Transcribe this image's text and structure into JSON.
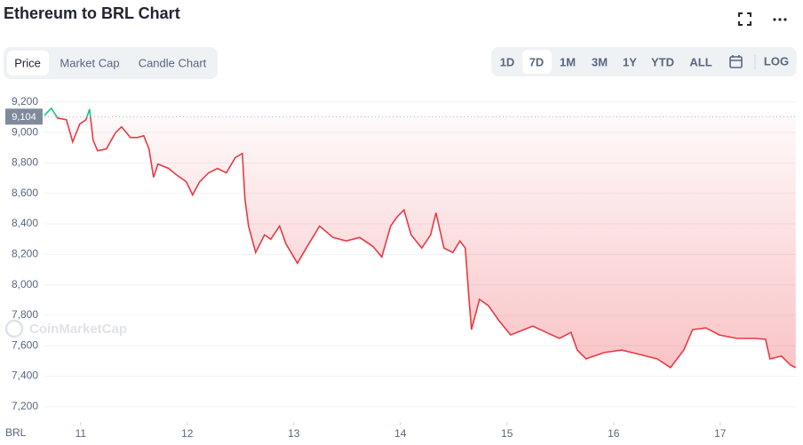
{
  "toolbar": {
    "tabs": [
      "Price",
      "Market Cap",
      "Candle Chart"
    ],
    "ranges": [
      "1D",
      "7D",
      "1M",
      "3M",
      "1Y",
      "YTD",
      "ALL"
    ],
    "log": "LOG",
    "watermark": "CoinMarketCap"
  },
  "chart_data": {
    "type": "line",
    "title": "Ethereum to BRL Chart",
    "y_label": "BRL",
    "x": [
      10.66,
      10.725,
      10.783,
      10.867,
      10.925,
      10.992,
      11.05,
      11.083,
      11.117,
      11.158,
      11.242,
      11.325,
      11.383,
      11.467,
      11.533,
      11.592,
      11.642,
      11.683,
      11.725,
      11.825,
      11.908,
      11.992,
      12.05,
      12.117,
      12.2,
      12.283,
      12.367,
      12.45,
      12.517,
      12.542,
      12.575,
      12.642,
      12.725,
      12.783,
      12.867,
      12.925,
      13.033,
      13.117,
      13.242,
      13.367,
      13.492,
      13.617,
      13.742,
      13.825,
      13.908,
      13.967,
      14.033,
      14.1,
      14.2,
      14.283,
      14.333,
      14.408,
      14.492,
      14.558,
      14.608,
      14.642,
      14.667,
      14.742,
      14.825,
      14.925,
      15.033,
      15.158,
      15.242,
      15.367,
      15.492,
      15.6,
      15.658,
      15.742,
      15.908,
      16.075,
      16.242,
      16.408,
      16.533,
      16.658,
      16.742,
      16.867,
      16.992,
      17.158,
      17.325,
      17.425,
      17.467,
      17.575,
      17.658,
      17.708
    ],
    "series": [
      {
        "name": "Price",
        "color": "#ea3943",
        "above_color": "#16c784",
        "values": [
          9113,
          9159,
          9095,
          9084,
          8938,
          9055,
          9084,
          9153,
          8950,
          8880,
          8892,
          8997,
          9037,
          8967,
          8967,
          8979,
          8892,
          8706,
          8793,
          8764,
          8717,
          8677,
          8590,
          8677,
          8735,
          8764,
          8735,
          8834,
          8863,
          8560,
          8386,
          8212,
          8328,
          8299,
          8386,
          8270,
          8142,
          8241,
          8386,
          8311,
          8288,
          8311,
          8252,
          8183,
          8386,
          8444,
          8491,
          8328,
          8241,
          8328,
          8473,
          8241,
          8212,
          8288,
          8241,
          7921,
          7706,
          7904,
          7863,
          7764,
          7671,
          7706,
          7729,
          7688,
          7648,
          7688,
          7572,
          7514,
          7555,
          7572,
          7543,
          7514,
          7456,
          7572,
          7706,
          7717,
          7671,
          7648,
          7648,
          7642,
          7514,
          7532,
          7474,
          7456
        ]
      }
    ],
    "reference": {
      "value": 9104,
      "label": "9,104"
    },
    "xlim": [
      10.66,
      17.71
    ],
    "xticks": [
      11,
      12,
      13,
      14,
      15,
      16,
      17
    ],
    "ylim": [
      7100,
      9240
    ],
    "yticks": [
      {
        "value": 7200,
        "label": "7,200"
      },
      {
        "value": 7400,
        "label": "7,400"
      },
      {
        "value": 7600,
        "label": "7,600"
      },
      {
        "value": 7800,
        "label": "7,800"
      },
      {
        "value": 8000,
        "label": "8,000"
      },
      {
        "value": 8200,
        "label": "8,200"
      },
      {
        "value": 8400,
        "label": "8,400"
      },
      {
        "value": 8600,
        "label": "8,600"
      },
      {
        "value": 8800,
        "label": "8,800"
      },
      {
        "value": 9000,
        "label": "9,000"
      },
      {
        "value": 9200,
        "label": "9,200"
      }
    ],
    "grid": true
  }
}
